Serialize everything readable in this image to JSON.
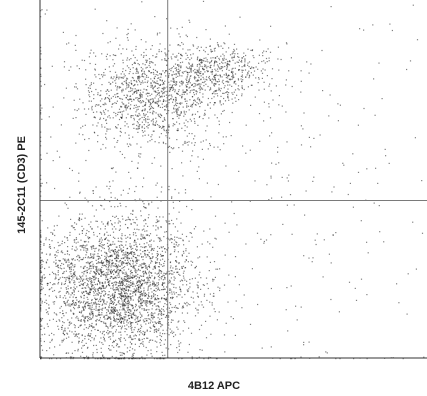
{
  "chart_data": {
    "type": "scatter",
    "subtype": "flow-cytometry density dot plot",
    "xlabel": "4B12 APC",
    "ylabel": "145-2C11 (CD3) PE",
    "axis_scale": "logarithmic (undecorated; no tick labels shown)",
    "ticks_visible": false,
    "grid": false,
    "quadrant_gates": {
      "x_gate_fraction": 0.33,
      "y_gate_fraction": 0.44
    },
    "populations": [
      {
        "name": "CD3-high, 4B12-low cluster",
        "cx": 0.28,
        "cy": 0.73,
        "sx": 0.09,
        "sy": 0.07,
        "weight": 0.22
      },
      {
        "name": "CD3-high, 4B12-mid tail",
        "cx": 0.46,
        "cy": 0.8,
        "sx": 0.07,
        "sy": 0.04,
        "weight": 0.1
      },
      {
        "name": "CD3-negative, 4B12-low cluster",
        "cx": 0.2,
        "cy": 0.2,
        "sx": 0.1,
        "sy": 0.1,
        "weight": 0.58
      },
      {
        "name": "sparse background",
        "cx": 0.45,
        "cy": 0.45,
        "sx": 0.35,
        "sy": 0.35,
        "weight": 0.1
      }
    ],
    "point_color": "#1a1a1a",
    "gate_line_color": "#7a7a7a"
  }
}
